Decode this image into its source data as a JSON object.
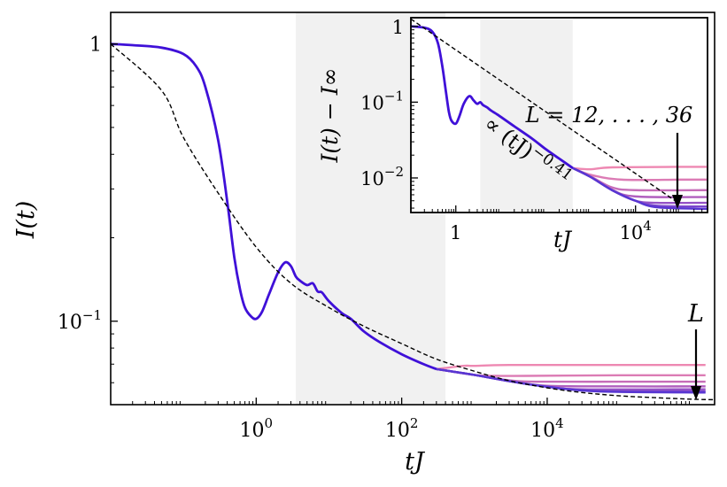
{
  "chart_data": [
    {
      "type": "line",
      "scale": {
        "x": "log",
        "y": "log"
      },
      "xlim": [
        0.01,
        2000000
      ],
      "ylim": [
        0.05,
        1.3
      ],
      "xlabel": "tJ",
      "ylabel": "I(t)",
      "xticks": [
        {
          "value": 1,
          "base": "10",
          "exp": "0"
        },
        {
          "value": 100,
          "base": "10",
          "exp": "2"
        },
        {
          "value": 10000,
          "base": "10",
          "exp": "4"
        }
      ],
      "yticks": [
        {
          "value": 1,
          "base": "1",
          "exp": ""
        },
        {
          "value": 0.1,
          "base": "10",
          "exp": "−1"
        }
      ],
      "shaded_band": [
        3.5,
        400
      ],
      "annotation": "L",
      "curve": {
        "x": [
          0.01,
          0.02,
          0.05,
          0.1,
          0.15,
          0.2,
          0.3,
          0.4,
          0.5,
          0.6,
          0.7,
          0.85,
          1.0,
          1.2,
          1.5,
          2.0,
          2.5,
          3.0,
          3.5,
          4.0,
          5.0,
          6.0,
          7.0,
          8.0,
          10,
          15,
          20,
          30,
          50,
          100,
          200,
          300
        ],
        "y": [
          1.0,
          0.99,
          0.97,
          0.92,
          0.83,
          0.7,
          0.45,
          0.27,
          0.17,
          0.13,
          0.112,
          0.104,
          0.102,
          0.108,
          0.125,
          0.15,
          0.163,
          0.158,
          0.145,
          0.14,
          0.135,
          0.137,
          0.128,
          0.127,
          0.118,
          0.107,
          0.102,
          0.092,
          0.084,
          0.076,
          0.07,
          0.0672
        ]
      },
      "saturation": [
        {
          "L": 12,
          "x": [
            300,
            700,
            1000,
            3000,
            100000,
            1500000
          ],
          "y": [
            0.0672,
            0.069,
            0.069,
            0.0695,
            0.0695,
            0.0695
          ],
          "color": "#ee88b2"
        },
        {
          "L": 16,
          "x": [
            300,
            1000,
            2000,
            5000,
            100000,
            1500000
          ],
          "y": [
            0.0672,
            0.064,
            0.0635,
            0.0635,
            0.0638,
            0.0638
          ],
          "color": "#dc7cb5"
        },
        {
          "L": 20,
          "x": [
            300,
            1000,
            3000,
            8000,
            100000,
            1500000
          ],
          "y": [
            0.0672,
            0.064,
            0.0612,
            0.0605,
            0.0605,
            0.0605
          ],
          "color": "#c66db8"
        },
        {
          "L": 24,
          "x": [
            300,
            1000,
            3000,
            10000,
            100000,
            1500000
          ],
          "y": [
            0.0672,
            0.064,
            0.0608,
            0.0585,
            0.0582,
            0.0582
          ],
          "color": "#b05fbe"
        },
        {
          "L": 28,
          "x": [
            300,
            1000,
            3000,
            10000,
            30000,
            1500000
          ],
          "y": [
            0.0672,
            0.064,
            0.0608,
            0.0581,
            0.0568,
            0.0568
          ],
          "color": "#9552c6"
        },
        {
          "L": 32,
          "x": [
            300,
            1000,
            3000,
            10000,
            50000,
            1500000
          ],
          "y": [
            0.0672,
            0.064,
            0.0608,
            0.058,
            0.056,
            0.0558
          ],
          "color": "#7a46cc"
        },
        {
          "L": 36,
          "x": [
            300,
            1000,
            3000,
            10000,
            50000,
            1500000
          ],
          "y": [
            0.0672,
            0.064,
            0.0608,
            0.058,
            0.0558,
            0.0553
          ],
          "color": "#5836d2"
        }
      ],
      "fit": {
        "x": [
          0.01,
          0.05,
          0.1,
          0.3,
          1,
          3,
          10,
          30,
          100,
          300,
          1000,
          3000,
          10000,
          30000,
          100000,
          300000,
          1000000,
          2000000
        ],
        "y": [
          1.0,
          0.68,
          0.46,
          0.29,
          0.185,
          0.137,
          0.112,
          0.096,
          0.083,
          0.073,
          0.066,
          0.061,
          0.0575,
          0.0553,
          0.0538,
          0.053,
          0.0523,
          0.0521
        ],
        "style": "dashed"
      }
    },
    {
      "type": "line",
      "scale": {
        "x": "log",
        "y": "log"
      },
      "xlim": [
        0.1,
        400000
      ],
      "ylim": [
        0.0035,
        1.3
      ],
      "xlabel": "tJ",
      "ylabel": "I(t) − I∞",
      "xticks": [
        {
          "value": 1,
          "base": "1",
          "exp": ""
        },
        {
          "value": 10000,
          "base": "10",
          "exp": "4"
        }
      ],
      "yticks": [
        {
          "value": 1,
          "base": "1",
          "exp": ""
        },
        {
          "value": 0.1,
          "base": "10",
          "exp": "−1"
        },
        {
          "value": 0.01,
          "base": "10",
          "exp": "−2"
        }
      ],
      "shaded_band": [
        3.5,
        400
      ],
      "fit_label": "∝ (tJ)",
      "fit_exponent": "−0.41",
      "annotation": "L = 12, . . . , 36",
      "curve": {
        "x": [
          0.1,
          0.2,
          0.3,
          0.4,
          0.5,
          0.6,
          0.7,
          0.8,
          1.0,
          1.2,
          1.5,
          2.0,
          2.5,
          3.0,
          3.5,
          4,
          5,
          6,
          8,
          10,
          20,
          50,
          100,
          200,
          400
        ],
        "y": [
          1.0,
          0.96,
          0.85,
          0.6,
          0.3,
          0.14,
          0.075,
          0.057,
          0.052,
          0.065,
          0.095,
          0.12,
          0.105,
          0.095,
          0.1,
          0.092,
          0.085,
          0.078,
          0.07,
          0.064,
          0.048,
          0.033,
          0.024,
          0.018,
          0.0135
        ]
      },
      "saturation": [
        {
          "L": 12,
          "x": [
            400,
            1000,
            3000,
            100000,
            400000
          ],
          "y": [
            0.0135,
            0.013,
            0.0138,
            0.014,
            0.014
          ],
          "color": "#ee88b2"
        },
        {
          "L": 16,
          "x": [
            400,
            1000,
            5000,
            100000,
            400000
          ],
          "y": [
            0.0135,
            0.011,
            0.0095,
            0.0095,
            0.0095
          ],
          "color": "#dc7cb5"
        },
        {
          "L": 20,
          "x": [
            400,
            1000,
            3000,
            10000,
            400000
          ],
          "y": [
            0.0135,
            0.0105,
            0.0075,
            0.0069,
            0.0069
          ],
          "color": "#c66db8"
        },
        {
          "L": 24,
          "x": [
            400,
            1000,
            3000,
            10000,
            400000
          ],
          "y": [
            0.0135,
            0.0103,
            0.007,
            0.0057,
            0.0056
          ],
          "color": "#b05fbe"
        },
        {
          "L": 28,
          "x": [
            400,
            1000,
            3000,
            10000,
            30000,
            400000
          ],
          "y": [
            0.0135,
            0.0103,
            0.0069,
            0.005,
            0.0047,
            0.0047
          ],
          "color": "#9552c6"
        },
        {
          "L": 32,
          "x": [
            400,
            1000,
            3000,
            10000,
            30000,
            400000
          ],
          "y": [
            0.0135,
            0.0103,
            0.0069,
            0.005,
            0.0043,
            0.0042
          ],
          "color": "#7a46cc"
        },
        {
          "L": 36,
          "x": [
            400,
            1000,
            3000,
            10000,
            30000,
            400000
          ],
          "y": [
            0.0135,
            0.0103,
            0.0069,
            0.005,
            0.0041,
            0.0039
          ],
          "color": "#5836d2"
        }
      ],
      "fit": {
        "x": [
          0.1,
          80000
        ],
        "y": [
          1.25,
          0.0049
        ],
        "style": "dashed"
      }
    }
  ]
}
